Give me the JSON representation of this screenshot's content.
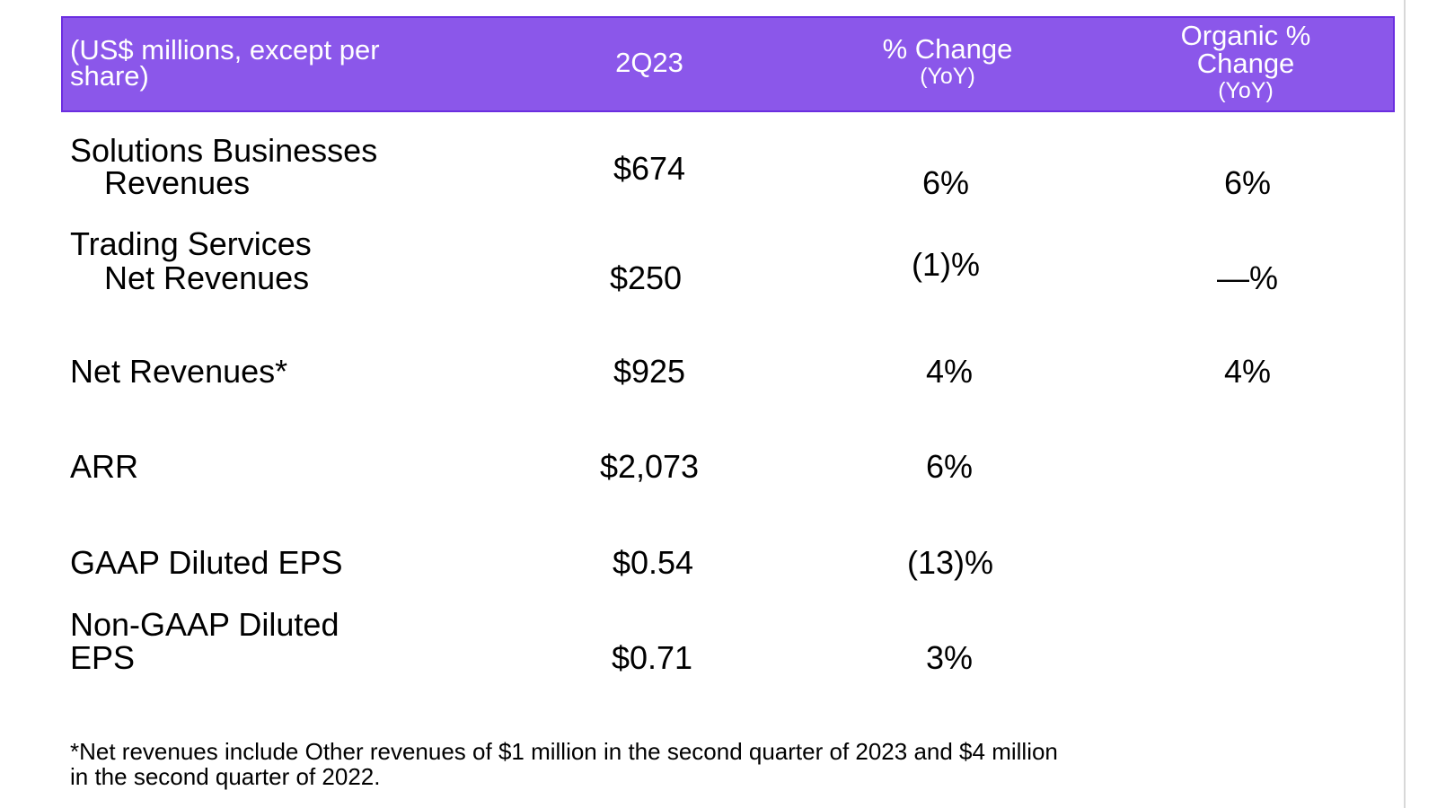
{
  "header": {
    "col0": [
      "(US$ millions, except per",
      "share)"
    ],
    "col1": "2Q23",
    "col2": {
      "title": "% Change",
      "sub": "(YoY)"
    },
    "col3": {
      "title": [
        "Organic %",
        "Change"
      ],
      "sub": "(YoY)"
    }
  },
  "rows": [
    {
      "label": [
        "Solutions Businesses",
        "Revenues"
      ],
      "value": "$674",
      "change": "6%",
      "organic": "6%"
    },
    {
      "label": [
        "Trading Services",
        "Net Revenues"
      ],
      "value": "$250",
      "change": "(1)%",
      "organic": "—%"
    },
    {
      "label": [
        "Net Revenues*"
      ],
      "value": "$925",
      "change": "4%",
      "organic": "4%"
    },
    {
      "label": [
        "ARR"
      ],
      "value": "$2,073",
      "change": "6%",
      "organic": ""
    },
    {
      "label": [
        "GAAP Diluted EPS"
      ],
      "value": "$0.54",
      "change": "(13)%",
      "organic": ""
    },
    {
      "label": [
        "Non-GAAP Diluted",
        "EPS"
      ],
      "value": "$0.71",
      "change": "3%",
      "organic": ""
    }
  ],
  "footnote": [
    "*Net revenues include Other revenues of $1 million in the second quarter of 2023 and $4 million",
    "in the second quarter of 2022."
  ],
  "colors": {
    "header_bg": "#8b57ea",
    "header_border": "#6b2ee0",
    "header_text": "#ffffff"
  }
}
